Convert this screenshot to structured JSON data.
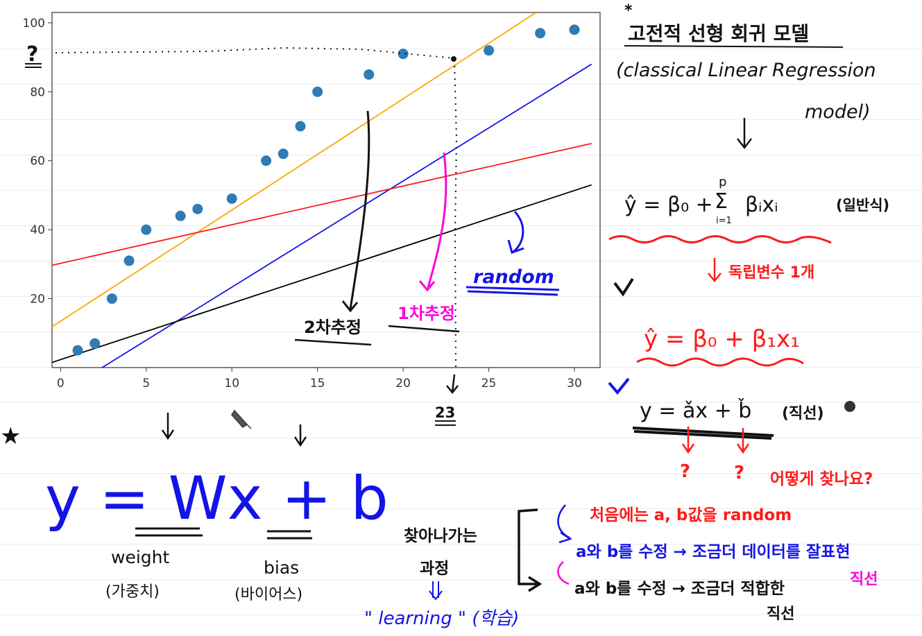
{
  "chart_data": {
    "type": "scatter",
    "title": "",
    "xlabel": "",
    "ylabel": "",
    "xlim": [
      -0.5,
      31.5
    ],
    "ylim": [
      0,
      103
    ],
    "x_ticks": [
      "0",
      "5",
      "10",
      "15",
      "20",
      "25",
      "30"
    ],
    "y_ticks": [
      "20",
      "40",
      "60",
      "80",
      "100"
    ],
    "grid": false,
    "series": [
      {
        "kind": "points",
        "color": "#2e7bb6",
        "points": [
          [
            1,
            5
          ],
          [
            2,
            7
          ],
          [
            3,
            20
          ],
          [
            4,
            31
          ],
          [
            5,
            40
          ],
          [
            7,
            44
          ],
          [
            8,
            46
          ],
          [
            10,
            49
          ],
          [
            12,
            60
          ],
          [
            13,
            62
          ],
          [
            14,
            70
          ],
          [
            15,
            80
          ],
          [
            18,
            85
          ],
          [
            20,
            91
          ],
          [
            25,
            92
          ],
          [
            28,
            97
          ],
          [
            30,
            98
          ]
        ]
      },
      {
        "kind": "line",
        "color": "#ffa500",
        "x": [
          -2,
          29
        ],
        "y": [
          7,
          107
        ]
      },
      {
        "kind": "line",
        "color": "#1414e6",
        "x": [
          -0.5,
          31
        ],
        "y": [
          -9,
          88
        ]
      },
      {
        "kind": "line",
        "color": "#ff1a1a",
        "x": [
          -2,
          31
        ],
        "y": [
          28,
          65
        ]
      },
      {
        "kind": "line",
        "color": "#000000",
        "x": [
          -0.5,
          31
        ],
        "y": [
          1.5,
          53
        ]
      }
    ]
  },
  "annotations": {
    "question_mark": "?",
    "x_marker": "23",
    "label_quadratic": "2차추정",
    "label_linear": "1차추정",
    "label_random": "random",
    "right_title_line1": "고전적 선형 회귀 모델",
    "right_title_line2": "(classical Linear Regression",
    "right_title_line3": "model)",
    "general_formula_left": "ŷ = β₀ +",
    "sum_top": "p",
    "sum_symbol": "Σ",
    "sum_bottom": "i=1",
    "general_formula_right": "βᵢxᵢ",
    "general_label": "(일반식)",
    "independent_var": "독립변수 1개",
    "simple_formula": "ŷ = β₀ + β₁x₁",
    "line_formula": "y = ǎx + b̌",
    "line_label": "(직선)",
    "q1": "?",
    "q2": "?",
    "how_find": "어떻게 찾나요?",
    "step1": "처음에는 a, b값을 random",
    "step2": "a와 b를 수정 → 조금더 데이터를 잘표현",
    "step2_tail": "직선",
    "step3": "a와 b를 수정 → 조금더 적합한",
    "step3_tail": "직선",
    "finding_process_1": "찾아나가는",
    "finding_process_2": "과정",
    "learning": "\" learning \" (학습)",
    "big_formula": "y = Wx + b",
    "weight": "weight",
    "weight_kr": "(가중치)",
    "bias": "bias",
    "bias_kr": "(바이어스)",
    "star": "★",
    "top_mark": "*"
  },
  "colors": {
    "ink_black": "#111111",
    "ink_red": "#ff1a1a",
    "ink_blue": "#1414e6",
    "ink_magenta": "#ff00dd"
  }
}
